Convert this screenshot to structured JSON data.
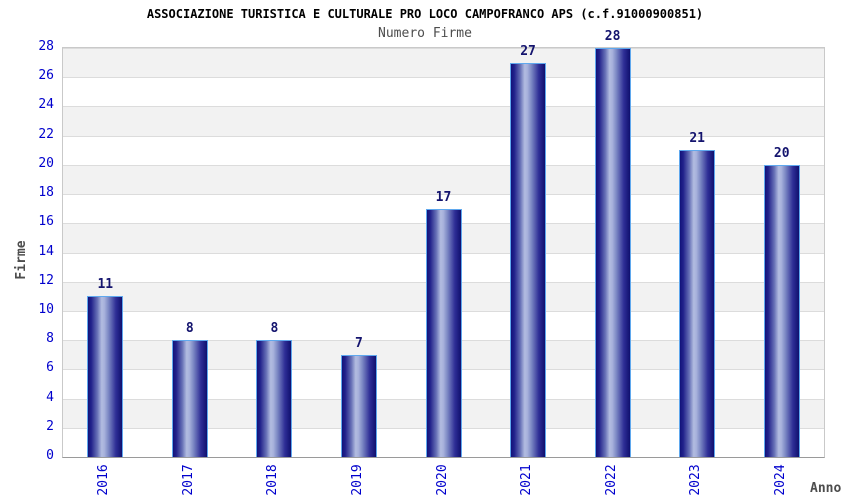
{
  "title": "ASSOCIAZIONE TURISTICA E CULTURALE PRO LOCO CAMPOFRANCO APS (c.f.91000900851)",
  "subtitle": "Numero Firme",
  "chart_data": {
    "type": "bar",
    "title": "ASSOCIAZIONE TURISTICA E CULTURALE PRO LOCO CAMPOFRANCO APS (c.f.91000900851)",
    "subtitle": "Numero Firme",
    "categories": [
      "2016",
      "2017",
      "2018",
      "2019",
      "2020",
      "2021",
      "2022",
      "2023",
      "2024"
    ],
    "values": [
      11,
      8,
      8,
      7,
      17,
      27,
      28,
      21,
      20
    ],
    "xlabel": "Anno",
    "ylabel": "Firme",
    "ylim": [
      0,
      28
    ],
    "ytick_step": 2,
    "grid": "horizontal-bands-alternating",
    "legend": "none",
    "value_labels": "above-bars"
  },
  "colors": {
    "tick_label": "#0000cd",
    "value_label": "#14146e",
    "bar_dark": "#12127a",
    "bar_light": "#b2bce0",
    "bar_border": "#5fa8ee",
    "band_gray": "#f2f2f2",
    "band_white": "#ffffff",
    "gridline": "#dcdcdc",
    "axis_text": "#4d4d4d",
    "title_text": "#000000"
  }
}
